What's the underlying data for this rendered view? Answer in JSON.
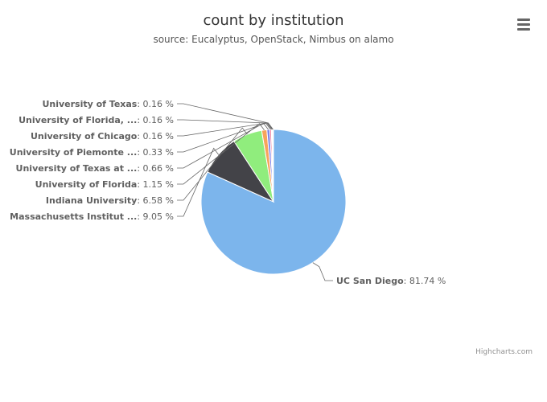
{
  "chart_data": {
    "type": "pie",
    "title": "count by institution",
    "subtitle": "source: Eucalyptus, OpenStack, Nimbus on alamo",
    "unit": " %",
    "slices": [
      {
        "name": "UC San Diego",
        "value": 81.74,
        "color": "#7cb5ec"
      },
      {
        "name": "Massachusetts Institut ...",
        "value": 9.05,
        "color": "#434348"
      },
      {
        "name": "Indiana University",
        "value": 6.58,
        "color": "#90ed7d"
      },
      {
        "name": "University of Florida",
        "value": 1.15,
        "color": "#f7a35c"
      },
      {
        "name": "University of Texas at ...",
        "value": 0.66,
        "color": "#8085e9"
      },
      {
        "name": "University of Piemonte ...",
        "value": 0.33,
        "color": "#f15c80"
      },
      {
        "name": "University of Chicago",
        "value": 0.16,
        "color": "#e4d354"
      },
      {
        "name": "University of Florida, ...",
        "value": 0.16,
        "color": "#8085e8"
      },
      {
        "name": "University of Texas",
        "value": 0.16,
        "color": "#8d4653"
      }
    ]
  },
  "ui": {
    "menu_icon": "hamburger-menu-icon",
    "credits": "Highcharts.com"
  }
}
